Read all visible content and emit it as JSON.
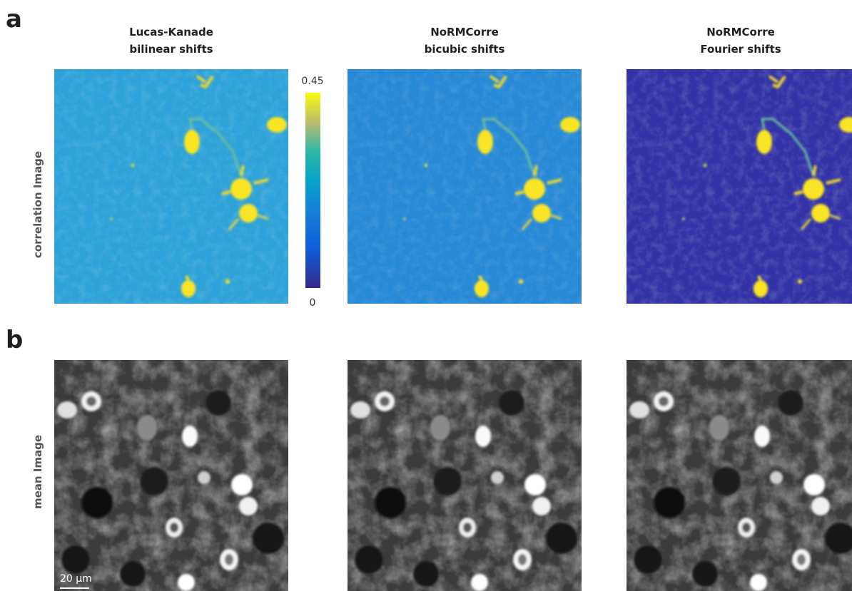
{
  "figure": {
    "panels": [
      {
        "label": "a",
        "row_label": "correlation Image"
      },
      {
        "label": "b",
        "row_label": "mean Image"
      }
    ],
    "columns": [
      {
        "title": [
          "Lucas-Kanade",
          "bilinear shifts"
        ]
      },
      {
        "title": [
          "NoRMCorre",
          "bicubic shifts"
        ]
      },
      {
        "title": [
          "NoRMCorre",
          "Fourier shifts"
        ]
      }
    ],
    "colorbar": {
      "ticks": [
        0,
        0.45
      ]
    },
    "scale_bar": "20 µm"
  }
}
